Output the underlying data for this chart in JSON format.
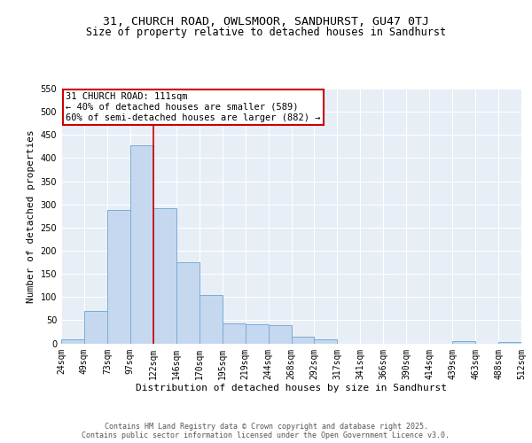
{
  "title1": "31, CHURCH ROAD, OWLSMOOR, SANDHURST, GU47 0TJ",
  "title2": "Size of property relative to detached houses in Sandhurst",
  "xlabel": "Distribution of detached houses by size in Sandhurst",
  "ylabel": "Number of detached properties",
  "bar_values": [
    8,
    70,
    288,
    428,
    292,
    176,
    105,
    43,
    42,
    39,
    15,
    8,
    0,
    0,
    0,
    0,
    0,
    4,
    0,
    3
  ],
  "bar_labels": [
    "24sqm",
    "49sqm",
    "73sqm",
    "97sqm",
    "122sqm",
    "146sqm",
    "170sqm",
    "195sqm",
    "219sqm",
    "244sqm",
    "268sqm",
    "292sqm",
    "317sqm",
    "341sqm",
    "366sqm",
    "390sqm",
    "414sqm",
    "439sqm",
    "463sqm",
    "488sqm",
    "512sqm"
  ],
  "bar_color": "#c5d8f0",
  "bar_edge_color": "#7aadd4",
  "annotation_text": "31 CHURCH ROAD: 111sqm\n← 40% of detached houses are smaller (589)\n60% of semi-detached houses are larger (882) →",
  "vline_x": 3.5,
  "vline_color": "#cc0000",
  "ylim": [
    0,
    550
  ],
  "yticks": [
    0,
    50,
    100,
    150,
    200,
    250,
    300,
    350,
    400,
    450,
    500,
    550
  ],
  "bg_color": "#e8eef6",
  "grid_color": "#ffffff",
  "footer_text": "Contains HM Land Registry data © Crown copyright and database right 2025.\nContains public sector information licensed under the Open Government Licence v3.0.",
  "title1_fontsize": 9.5,
  "title2_fontsize": 8.5,
  "axis_label_fontsize": 8,
  "tick_fontsize": 7,
  "annot_fontsize": 7.5,
  "footer_fontsize": 6
}
